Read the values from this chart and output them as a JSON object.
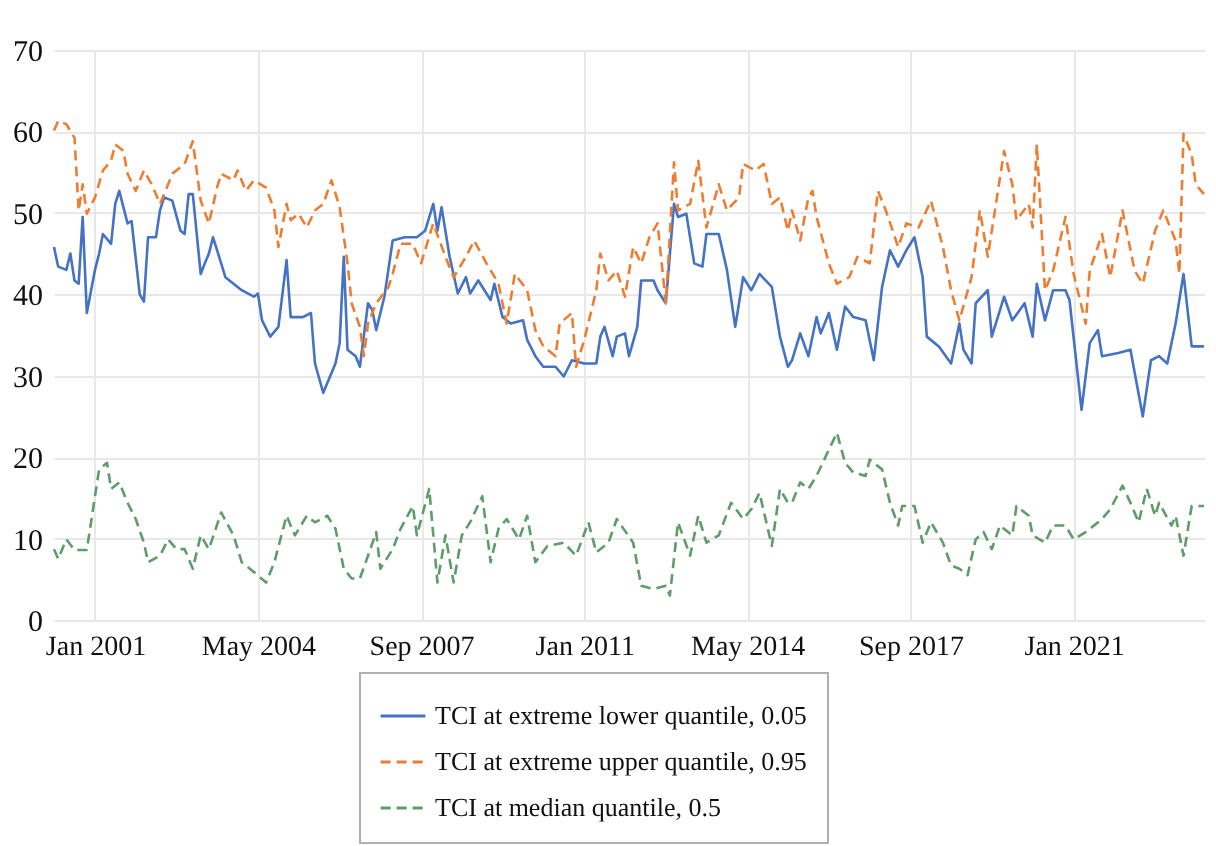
{
  "chart_data": {
    "type": "line",
    "xlim": [
      "2000-03",
      "2023-09"
    ],
    "ylim": [
      0,
      70
    ],
    "yticks": [
      0,
      10,
      20,
      30,
      40,
      50,
      60,
      70
    ],
    "xticks": [
      {
        "value": "2001-01",
        "label": "Jan 2001"
      },
      {
        "value": "2004-05",
        "label": "May 2004"
      },
      {
        "value": "2007-09",
        "label": "Sep 2007"
      },
      {
        "value": "2011-01",
        "label": "Jan 2011"
      },
      {
        "value": "2014-05",
        "label": "May 2014"
      },
      {
        "value": "2017-09",
        "label": "Sep 2017"
      },
      {
        "value": "2021-01",
        "label": "Jan 2021"
      }
    ],
    "grid": true,
    "legend": "bottom",
    "series": [
      {
        "name": "TCI at extreme lower quantile, 0.05",
        "color": "#4472c4",
        "line_style": "solid",
        "x": [
          "2000-03",
          "2000-04",
          "2000-06",
          "2000-07",
          "2000-08",
          "2000-09",
          "2000-10",
          "2000-11",
          "2001-01",
          "2001-02",
          "2001-03",
          "2001-05",
          "2001-06",
          "2001-07",
          "2001-09",
          "2001-10",
          "2001-12",
          "2002-01",
          "2002-02",
          "2002-04",
          "2002-05",
          "2002-06",
          "2002-08",
          "2002-10",
          "2002-11",
          "2002-12",
          "2003-01",
          "2003-03",
          "2003-04",
          "2003-05",
          "2003-06",
          "2003-08",
          "2003-09",
          "2003-11",
          "2004-01",
          "2004-04",
          "2004-05",
          "2004-06",
          "2004-08",
          "2004-10",
          "2004-12",
          "2005-01",
          "2005-04",
          "2005-06",
          "2005-07",
          "2005-09",
          "2005-10",
          "2005-12",
          "2006-01",
          "2006-02",
          "2006-03",
          "2006-05",
          "2006-06",
          "2006-08",
          "2006-09",
          "2006-10",
          "2006-12",
          "2007-02",
          "2007-05",
          "2007-08",
          "2007-10",
          "2007-12",
          "2008-01",
          "2008-02",
          "2008-04",
          "2008-06",
          "2008-08",
          "2008-09",
          "2008-11",
          "2009-02",
          "2009-03",
          "2009-05",
          "2009-07",
          "2009-10",
          "2009-11",
          "2010-01",
          "2010-03",
          "2010-06",
          "2010-08",
          "2010-10",
          "2011-01",
          "2011-04",
          "2011-05",
          "2011-06",
          "2011-08",
          "2011-09",
          "2011-11",
          "2011-12",
          "2012-02",
          "2012-03",
          "2012-06",
          "2012-07",
          "2012-09",
          "2012-11",
          "2012-12",
          "2013-02",
          "2013-04",
          "2013-06",
          "2013-07",
          "2013-10",
          "2013-12",
          "2014-02",
          "2014-04",
          "2014-06",
          "2014-08",
          "2014-11",
          "2015-01",
          "2015-03",
          "2015-04",
          "2015-06",
          "2015-08",
          "2015-10",
          "2015-11",
          "2016-01",
          "2016-03",
          "2016-05",
          "2016-07",
          "2016-10",
          "2016-12",
          "2017-02",
          "2017-04",
          "2017-06",
          "2017-08",
          "2017-10",
          "2017-12",
          "2018-01",
          "2018-04",
          "2018-07",
          "2018-09",
          "2018-10",
          "2018-12",
          "2019-01",
          "2019-04",
          "2019-05",
          "2019-08",
          "2019-10",
          "2020-01",
          "2020-03",
          "2020-04",
          "2020-06",
          "2020-08",
          "2020-11",
          "2020-12",
          "2021-03",
          "2021-05",
          "2021-07",
          "2021-08",
          "2021-12",
          "2022-03",
          "2022-06",
          "2022-08",
          "2022-10",
          "2022-12",
          "2023-02",
          "2023-04",
          "2023-06",
          "2023-09"
        ],
        "values": [
          45.8,
          43.4,
          43,
          45,
          41.7,
          41.3,
          49.5,
          37.7,
          43,
          45,
          47.4,
          46.2,
          51.1,
          52.7,
          48.7,
          49,
          40,
          39.1,
          47,
          47,
          50.3,
          51.9,
          51.5,
          47.8,
          47.4,
          52.3,
          52.3,
          42.5,
          43.8,
          45,
          47,
          43.8,
          42.1,
          41.3,
          40.5,
          39.7,
          40.1,
          36.8,
          34.8,
          36,
          44.2,
          37.2,
          37.2,
          37.7,
          31.5,
          27.9,
          29.1,
          31.5,
          34,
          44.6,
          33.2,
          32.4,
          31.1,
          38.9,
          38.1,
          35.6,
          39.7,
          46.6,
          47,
          47,
          47.8,
          51.1,
          47.8,
          50.7,
          44.6,
          40.1,
          42.1,
          40.1,
          41.7,
          39.3,
          41.3,
          37.2,
          36.4,
          36.8,
          34.4,
          32.4,
          31.1,
          31.1,
          29.9,
          31.9,
          31.5,
          31.5,
          34.8,
          36,
          32.4,
          34.8,
          35.2,
          32.4,
          36,
          41.7,
          41.7,
          40.5,
          38.9,
          51.1,
          49.5,
          49.9,
          43.8,
          43.4,
          47.4,
          47.4,
          43,
          36,
          42.1,
          40.5,
          42.5,
          40.9,
          34.8,
          31.1,
          31.9,
          35.2,
          32.4,
          37.2,
          35.2,
          37.7,
          33.2,
          38.5,
          37.2,
          36.8,
          31.9,
          40.9,
          45.4,
          43.4,
          45.4,
          47,
          42.1,
          34.8,
          33.6,
          31.5,
          36.4,
          33.2,
          31.5,
          38.9,
          40.5,
          34.8,
          39.7,
          36.8,
          38.9,
          34.8,
          41.3,
          36.8,
          40.5,
          40.5,
          39.3,
          25.8,
          34,
          35.6,
          32.4,
          32.8,
          33.2,
          25,
          31.9,
          32.4,
          31.5,
          36.4,
          42.5,
          33.6,
          33.6
        ]
      },
      {
        "name": "TCI at extreme upper quantile, 0.95",
        "color": "#ed7d31",
        "line_style": "dashed",
        "x": [
          "2000-03",
          "2000-04",
          "2000-06",
          "2000-08",
          "2000-09",
          "2000-10",
          "2000-11",
          "2001-01",
          "2001-03",
          "2001-05",
          "2001-06",
          "2001-08",
          "2001-09",
          "2001-11",
          "2002-01",
          "2002-03",
          "2002-05",
          "2002-07",
          "2002-08",
          "2002-11",
          "2003-01",
          "2003-03",
          "2003-05",
          "2003-07",
          "2003-08",
          "2003-11",
          "2003-12",
          "2004-02",
          "2004-04",
          "2004-07",
          "2004-09",
          "2004-10",
          "2004-12",
          "2005-01",
          "2005-03",
          "2005-05",
          "2005-07",
          "2005-09",
          "2005-11",
          "2006-01",
          "2006-03",
          "2006-04",
          "2006-06",
          "2006-07",
          "2006-08",
          "2006-10",
          "2007-01",
          "2007-02",
          "2007-04",
          "2007-07",
          "2007-09",
          "2007-12",
          "2008-03",
          "2008-05",
          "2008-08",
          "2008-10",
          "2009-01",
          "2009-04",
          "2009-06",
          "2009-08",
          "2009-11",
          "2010-01",
          "2010-03",
          "2010-06",
          "2010-07",
          "2010-10",
          "2010-11",
          "2011-01",
          "2011-04",
          "2011-05",
          "2011-07",
          "2011-09",
          "2011-11",
          "2012-01",
          "2012-03",
          "2012-05",
          "2012-07",
          "2012-09",
          "2012-11",
          "2012-12",
          "2013-03",
          "2013-05",
          "2013-07",
          "2013-10",
          "2013-12",
          "2014-03",
          "2014-04",
          "2014-07",
          "2014-09",
          "2014-11",
          "2015-01",
          "2015-03",
          "2015-04",
          "2015-06",
          "2015-08",
          "2015-09",
          "2015-10",
          "2016-01",
          "2016-03",
          "2016-06",
          "2016-08",
          "2016-11",
          "2017-01",
          "2017-03",
          "2017-06",
          "2017-08",
          "2017-11",
          "2018-02",
          "2018-05",
          "2018-07",
          "2018-09",
          "2018-12",
          "2019-02",
          "2019-04",
          "2019-08",
          "2019-10",
          "2019-11",
          "2020-02",
          "2020-03",
          "2020-04",
          "2020-06",
          "2020-08",
          "2020-11",
          "2021-01",
          "2021-04",
          "2021-05",
          "2021-08",
          "2021-10",
          "2022-01",
          "2022-04",
          "2022-06",
          "2022-09",
          "2022-11",
          "2023-02",
          "2023-03",
          "2023-04",
          "2023-06",
          "2023-07",
          "2023-09"
        ],
        "values": [
          60.1,
          61.3,
          60.9,
          59.2,
          50.3,
          53.5,
          49.9,
          51.9,
          55.2,
          56.4,
          58.4,
          57.6,
          54.8,
          52.7,
          55.2,
          53.5,
          51.1,
          53.5,
          54.8,
          56,
          58.8,
          51.5,
          48.7,
          53.1,
          54.8,
          54,
          55.2,
          52.7,
          54,
          53.1,
          50.3,
          45.8,
          51.1,
          49.1,
          49.9,
          48.2,
          50.3,
          51.1,
          54,
          50.7,
          43.8,
          38.9,
          36,
          32.4,
          36.4,
          38.9,
          40.9,
          42.5,
          46.2,
          46.2,
          43.8,
          48.7,
          44.6,
          42.1,
          44.6,
          46.6,
          43.8,
          41.3,
          36.4,
          42.5,
          40.5,
          35.6,
          33.6,
          32.4,
          36.4,
          37.7,
          31.1,
          34.4,
          40.5,
          45,
          41.7,
          42.9,
          39.7,
          45.8,
          43.8,
          47,
          48.7,
          38.9,
          56.2,
          50.3,
          51.1,
          56.4,
          48.2,
          53.5,
          50.3,
          51.9,
          56,
          55.2,
          56,
          51.1,
          51.9,
          47.8,
          50.3,
          46.6,
          51.9,
          52.7,
          49.5,
          43.8,
          41.3,
          42.1,
          44.6,
          43.8,
          52.7,
          50.3,
          45.8,
          48.7,
          48.2,
          51.5,
          45.8,
          40.5,
          36.8,
          42.1,
          50.3,
          44.6,
          57.6,
          53.5,
          49.1,
          51.1,
          48.2,
          58.4,
          40.5,
          42.9,
          49.5,
          42.5,
          36.4,
          42.9,
          47.4,
          42.1,
          50.3,
          42.9,
          41.3,
          47.8,
          50.3,
          46.6,
          42.5,
          59.7,
          57.2,
          53.5,
          52.3
        ]
      },
      {
        "name": "TCI at median quantile, 0.5",
        "color": "#5e9c6a",
        "line_style": "dashed",
        "x": [
          "2000-03",
          "2000-04",
          "2000-06",
          "2000-08",
          "2000-11",
          "2001-01",
          "2001-02",
          "2001-04",
          "2001-05",
          "2001-07",
          "2001-09",
          "2001-11",
          "2002-01",
          "2002-02",
          "2002-05",
          "2002-07",
          "2002-09",
          "2002-11",
          "2003-01",
          "2003-03",
          "2003-05",
          "2003-08",
          "2003-11",
          "2004-01",
          "2004-04",
          "2004-07",
          "2004-09",
          "2004-12",
          "2005-02",
          "2005-05",
          "2005-07",
          "2005-10",
          "2005-12",
          "2006-02",
          "2006-04",
          "2006-06",
          "2006-08",
          "2006-10",
          "2006-11",
          "2007-02",
          "2007-04",
          "2007-07",
          "2007-08",
          "2007-11",
          "2008-01",
          "2008-03",
          "2008-05",
          "2008-07",
          "2008-09",
          "2008-12",
          "2009-02",
          "2009-04",
          "2009-06",
          "2009-09",
          "2009-11",
          "2010-01",
          "2010-04",
          "2010-08",
          "2010-11",
          "2011-02",
          "2011-04",
          "2011-07",
          "2011-09",
          "2012-01",
          "2012-03",
          "2012-06",
          "2012-09",
          "2012-10",
          "2012-12",
          "2013-03",
          "2013-05",
          "2013-07",
          "2013-10",
          "2014-01",
          "2014-04",
          "2014-06",
          "2014-08",
          "2014-11",
          "2015-01",
          "2015-03",
          "2015-04",
          "2015-06",
          "2015-08",
          "2015-10",
          "2016-01",
          "2016-03",
          "2016-05",
          "2016-07",
          "2016-10",
          "2016-11",
          "2017-02",
          "2017-04",
          "2017-06",
          "2017-07",
          "2017-10",
          "2017-12",
          "2018-02",
          "2018-05",
          "2018-07",
          "2018-09",
          "2018-11",
          "2019-01",
          "2019-03",
          "2019-05",
          "2019-07",
          "2019-10",
          "2019-11",
          "2020-02",
          "2020-03",
          "2020-06",
          "2020-08",
          "2020-11",
          "2021-01",
          "2021-04",
          "2021-08",
          "2021-10",
          "2022-01",
          "2022-03",
          "2022-05",
          "2022-07",
          "2022-09",
          "2022-10",
          "2023-01",
          "2023-02",
          "2023-04",
          "2023-06",
          "2023-09"
        ],
        "values": [
          8.7,
          7.5,
          9.9,
          8.6,
          8.6,
          15.2,
          18.5,
          19.3,
          16.1,
          16.9,
          14.4,
          12.4,
          9.5,
          7.1,
          7.9,
          9.9,
          8.7,
          8.7,
          6.3,
          10.4,
          8.7,
          13.2,
          10.4,
          7.1,
          5.9,
          4.6,
          7.1,
          12.8,
          10.4,
          12.8,
          12,
          12.8,
          11.2,
          6.3,
          5.1,
          5.1,
          7.9,
          10.8,
          6.3,
          8.7,
          11.2,
          14,
          10.4,
          16.1,
          4.6,
          10.4,
          4.6,
          10.4,
          12,
          15.2,
          7.1,
          11.2,
          12.4,
          9.9,
          12.8,
          7.1,
          9.1,
          9.5,
          7.9,
          12,
          8.3,
          9.5,
          12.4,
          9.5,
          4.2,
          3.8,
          4.2,
          3,
          12,
          7.9,
          12.8,
          9.5,
          10.4,
          14.4,
          12.4,
          13.6,
          15.6,
          9.1,
          16.1,
          14.4,
          14.4,
          16.9,
          16.1,
          17.7,
          20.9,
          23,
          19.3,
          18.1,
          17.7,
          19.7,
          18.5,
          14.4,
          11.6,
          14,
          14,
          9.5,
          12,
          9.5,
          6.7,
          6.3,
          5.5,
          9.9,
          10.8,
          8.7,
          11.6,
          10.4,
          14,
          12.8,
          10.4,
          9.5,
          11.6,
          11.6,
          9.9,
          10.8,
          12.4,
          13.6,
          16.5,
          14.4,
          12,
          16.1,
          12.8,
          14.4,
          11.6,
          12.8,
          7.9,
          14,
          14
        ]
      }
    ]
  }
}
